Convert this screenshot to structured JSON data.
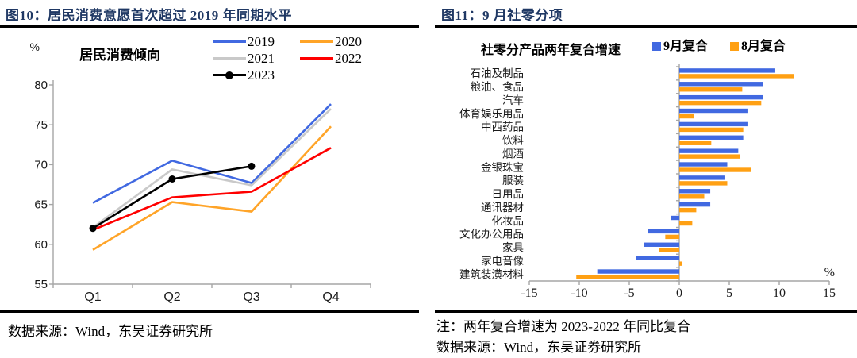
{
  "left_figure": {
    "title": "图10：居民消费意愿首次超过 2019 年同期水平",
    "source": "数据来源：Wind，东吴证券研究所"
  },
  "right_figure": {
    "title": "图11：9 月社零分项",
    "note": "注：两年复合增速为 2023-2022 年同比复合",
    "source": "数据来源：Wind，东吴证券研究所"
  },
  "colors": {
    "caption_navy": "#1F3864",
    "axis_gray": "#A6A6A6",
    "rule_black": "#000000"
  },
  "chart_data": [
    {
      "type": "line",
      "inner_title": "居民消费倾向",
      "unit_label": "%",
      "categories": [
        "Q1",
        "Q2",
        "Q3",
        "Q4"
      ],
      "ylim": [
        55,
        80
      ],
      "yticks": [
        55,
        60,
        65,
        70,
        75,
        80
      ],
      "grid": false,
      "legend_position": "top",
      "series": [
        {
          "name": "2019",
          "color": "#4169E1",
          "values": [
            65.2,
            70.5,
            67.7,
            77.6
          ]
        },
        {
          "name": "2020",
          "color": "#FFA428",
          "values": [
            59.3,
            65.3,
            64.1,
            74.8
          ]
        },
        {
          "name": "2021",
          "color": "#C9C9C9",
          "values": [
            62.1,
            69.4,
            67.4,
            77.0
          ]
        },
        {
          "name": "2022",
          "color": "#FF0000",
          "values": [
            61.8,
            65.9,
            66.6,
            72.1
          ]
        },
        {
          "name": "2023",
          "color": "#000000",
          "values": [
            62.0,
            68.2,
            69.8
          ],
          "marker": "circle"
        }
      ]
    },
    {
      "type": "bar",
      "orientation": "horizontal",
      "inner_title": "社零分产品两年复合增速",
      "unit_label": "%",
      "xlim": [
        -15,
        15
      ],
      "xticks": [
        -15,
        -10,
        -5,
        0,
        5,
        10,
        15
      ],
      "grid": false,
      "legend_position": "top",
      "categories": [
        "石油及制品",
        "粮油、食品",
        "汽车",
        "体育娱乐用品",
        "中西药品",
        "饮料",
        "烟酒",
        "金银珠宝",
        "服装",
        "日用品",
        "通讯器材",
        "化妆品",
        "文化办公用品",
        "家具",
        "家电音像",
        "建筑装潢材料"
      ],
      "series": [
        {
          "name": "9月复合",
          "color": "#4169E1",
          "values": [
            9.6,
            8.4,
            8.4,
            6.9,
            6.9,
            6.4,
            5.9,
            4.8,
            4.6,
            3.1,
            3.1,
            -0.8,
            -3.1,
            -3.5,
            -4.3,
            -8.2
          ]
        },
        {
          "name": "8月复合",
          "color": "#FFA013",
          "values": [
            11.5,
            6.3,
            8.2,
            1.5,
            6.4,
            3.2,
            6.1,
            7.2,
            4.8,
            2.5,
            1.7,
            1.3,
            -1.4,
            -2.0,
            0.3,
            -10.3
          ]
        }
      ]
    }
  ]
}
